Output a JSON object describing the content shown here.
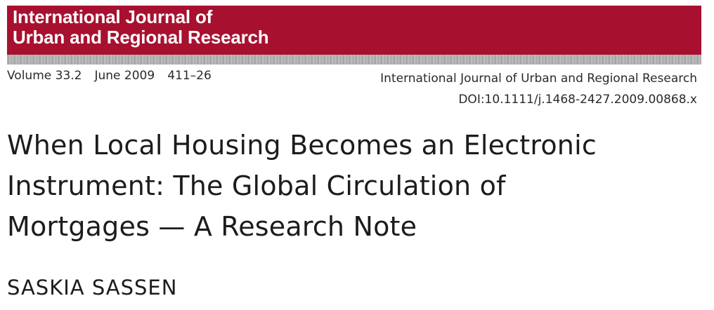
{
  "masthead": {
    "journal_name_line1": "International Journal of",
    "journal_name_line2": "Urban and Regional Research",
    "brand_color": "#a8102f"
  },
  "issue": {
    "volume": "Volume 33.2",
    "date": "June 2009",
    "pages": "411–26"
  },
  "reference": {
    "journal": "International Journal of Urban and Regional Research",
    "doi": "DOI:10.1111/j.1468-2427.2009.00868.x"
  },
  "article": {
    "title_lines": [
      "When Local Housing Becomes an Electronic",
      "Instrument: The Global Circulation of",
      "Mortgages — A Research Note"
    ],
    "author": "SASKIA SASSEN"
  }
}
